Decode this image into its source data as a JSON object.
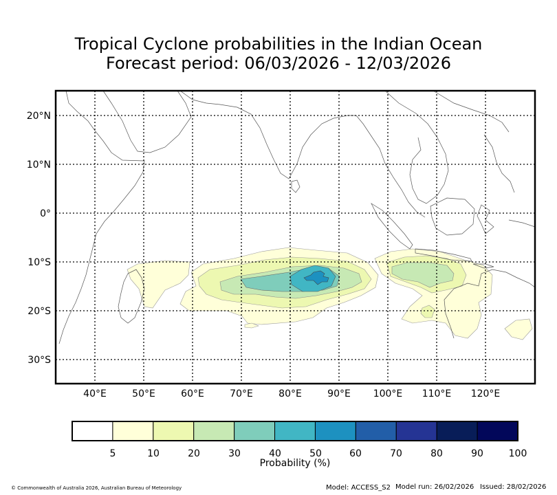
{
  "header": {
    "title_line1": "Tropical Cyclone probabilities in the Indian Ocean",
    "title_line2": "Forecast period: 06/03/2026 - 12/03/2026"
  },
  "map": {
    "lat_labels": [
      "20°N",
      "10°N",
      "0°",
      "10°S",
      "20°S",
      "30°S"
    ],
    "lon_labels": [
      "40°E",
      "50°E",
      "60°E",
      "70°E",
      "80°E",
      "90°E",
      "100°E",
      "110°E",
      "120°E"
    ],
    "colors": {
      "p5": "#ffffd9",
      "p10": "#edf8b1",
      "p20": "#c7e9b4",
      "p30": "#7fcdbb",
      "p40": "#41b6c4",
      "p50": "#1d91c0",
      "coast": "#555555",
      "grid": "#000000"
    }
  },
  "colorbar": {
    "ticks": [
      "5",
      "10",
      "20",
      "30",
      "40",
      "50",
      "60",
      "70",
      "80",
      "90",
      "100"
    ],
    "label": "Probability (%)",
    "colors": [
      "#ffffff",
      "#ffffd9",
      "#edf8b1",
      "#c7e9b4",
      "#7fcdbb",
      "#41b6c4",
      "#1d91c0",
      "#225ea8",
      "#253494",
      "#081d58",
      "#02075a"
    ]
  },
  "footer": {
    "copyright": "© Commonwealth of Australia 2026, Australian Bureau of Meteorology",
    "model": "Model: ACCESS_S2",
    "model_run": "Model run: 26/02/2026",
    "issued": "Issued: 28/02/2026"
  }
}
